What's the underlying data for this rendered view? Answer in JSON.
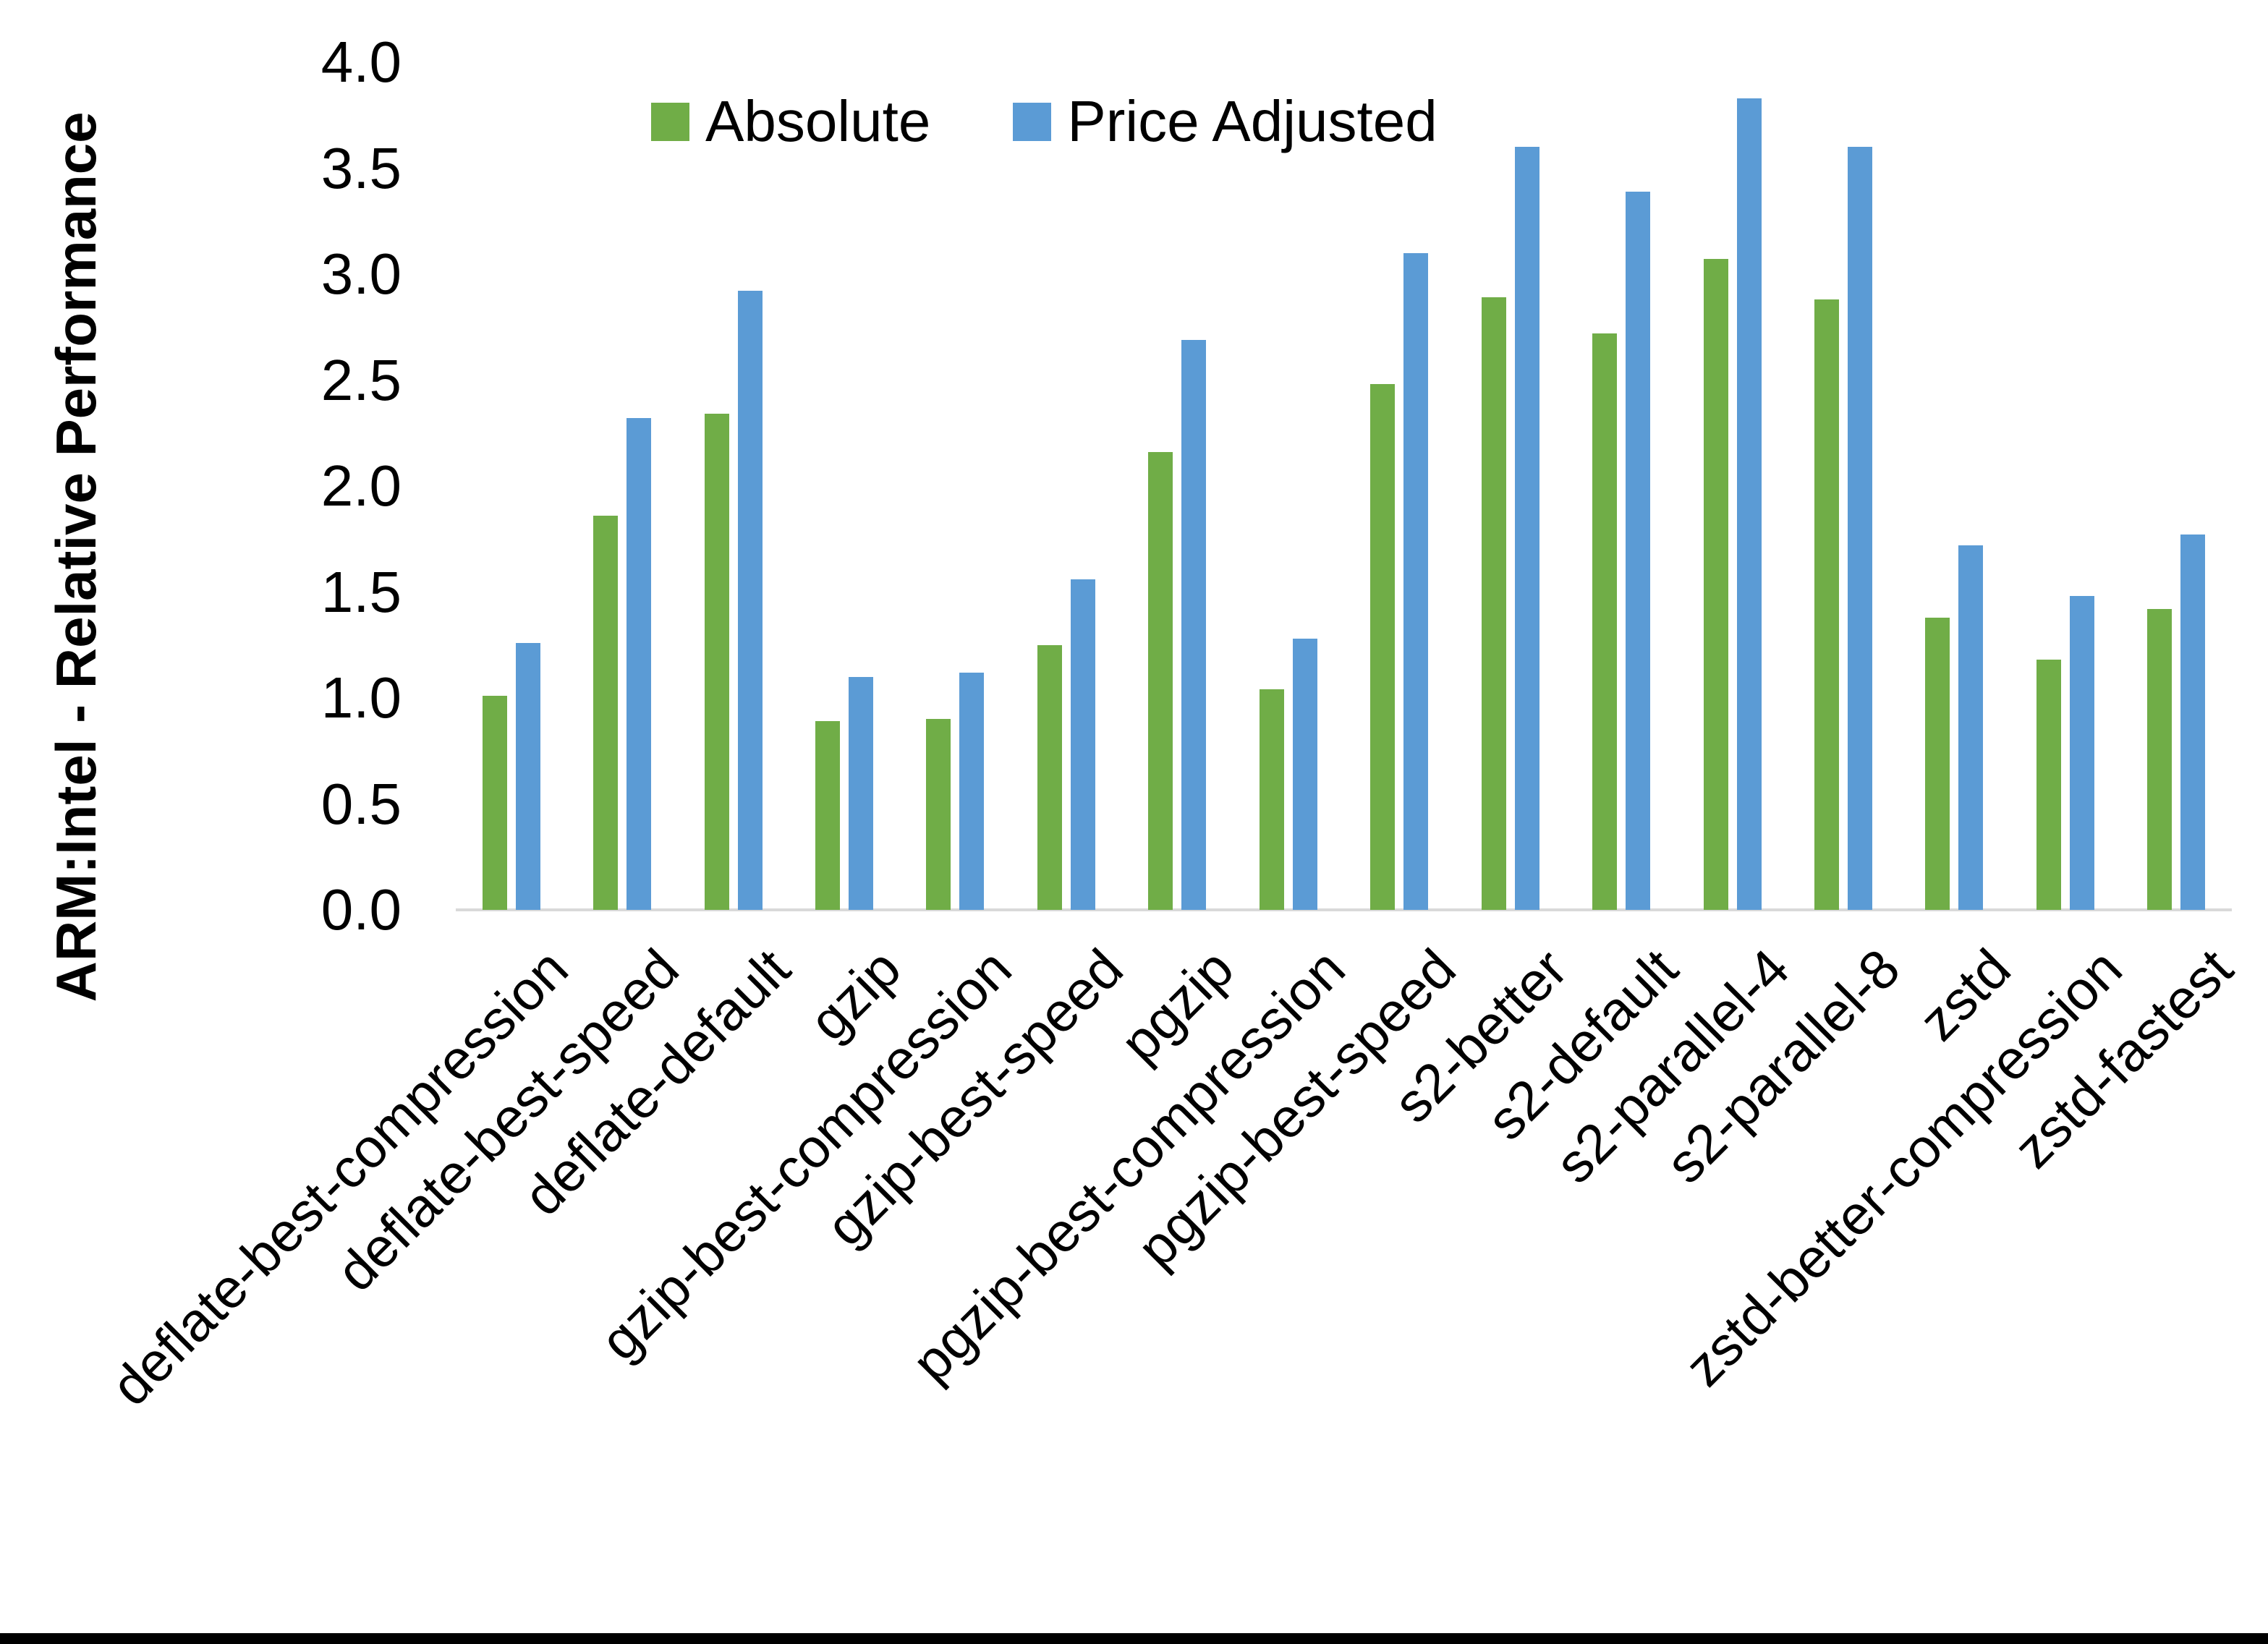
{
  "chart_data": {
    "type": "bar",
    "title": "",
    "ylabel": "ARM:Intel - Relative Performance",
    "xlabel": "",
    "ylim": [
      0.0,
      4.0
    ],
    "ytick_step": 0.5,
    "yticks": [
      "4.0",
      "3.5",
      "3.0",
      "2.5",
      "2.0",
      "1.5",
      "1.0",
      "0.5",
      "0.0"
    ],
    "grid": false,
    "legend_position": "top",
    "categories": [
      "deflate-best-compression",
      "deflate-best-speed",
      "deflate-default",
      "gzip",
      "gzip-best-compression",
      "gzip-best-speed",
      "pgzip",
      "pgzip-best-compression",
      "pgzip-best-speed",
      "s2-better",
      "s2-default",
      "s2-parallel-4",
      "s2-parallel-8",
      "zstd",
      "zstd-better-compression",
      "zstd-fastest"
    ],
    "series": [
      {
        "name": "Absolute",
        "color": "#70AD47",
        "values": [
          1.01,
          1.86,
          2.34,
          0.89,
          0.9,
          1.25,
          2.16,
          1.04,
          2.48,
          2.89,
          2.72,
          3.07,
          2.88,
          1.38,
          1.18,
          1.42
        ]
      },
      {
        "name": "Price Adjusted",
        "color": "#5B9BD5",
        "values": [
          1.26,
          2.32,
          2.92,
          1.1,
          1.12,
          1.56,
          2.69,
          1.28,
          3.1,
          3.6,
          3.39,
          3.83,
          3.6,
          1.72,
          1.48,
          1.77
        ]
      }
    ],
    "colors": {
      "axis_line": "#D9D9D9",
      "text": "#000000",
      "background": "#FFFFFF",
      "bottom_border": "#000000"
    }
  }
}
